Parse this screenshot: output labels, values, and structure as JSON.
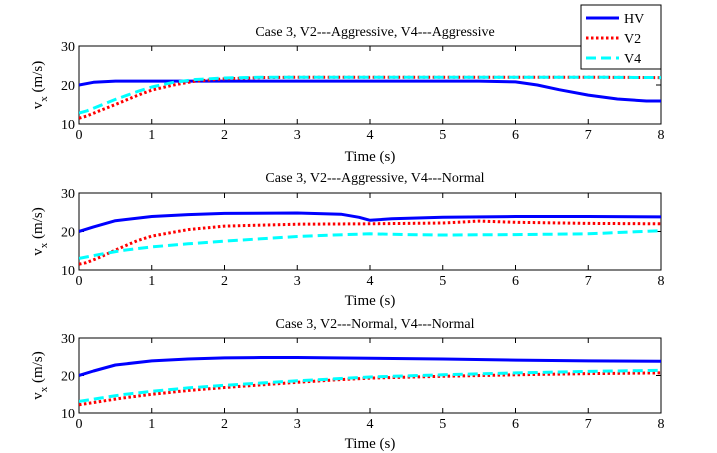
{
  "chart_data": [
    {
      "type": "line",
      "title": "Case 3, V2---Aggressive, V4---Aggressive",
      "xlabel": "Time (s)",
      "ylabel": "v",
      "ylabel_sub": "x",
      "ylabel_unit": " (m/s)",
      "xlim": [
        0,
        8
      ],
      "ylim": [
        10,
        30
      ],
      "xticks": [
        0,
        1,
        2,
        3,
        4,
        5,
        6,
        7,
        8
      ],
      "yticks": [
        10,
        20,
        30
      ],
      "grid": false,
      "legend": "top-right",
      "series": [
        {
          "name": "HV",
          "color": "#0000ff",
          "style": "solid",
          "x": [
            0,
            0.2,
            0.5,
            1,
            2,
            3,
            4,
            5,
            5.5,
            6,
            6.3,
            6.6,
            7,
            7.4,
            7.8,
            8
          ],
          "y": [
            20,
            20.7,
            21,
            21,
            21,
            21,
            21,
            21,
            21,
            20.8,
            20,
            18.8,
            17.4,
            16.4,
            15.9,
            15.9
          ]
        },
        {
          "name": "V2",
          "color": "#ff0000",
          "style": "dotted",
          "x": [
            0,
            0.1,
            0.3,
            0.5,
            0.8,
            1,
            1.3,
            1.6,
            2,
            2.5,
            3,
            4,
            5,
            6,
            7,
            8
          ],
          "y": [
            11.5,
            12,
            13.5,
            15,
            17.3,
            18.7,
            20,
            21,
            21.6,
            21.9,
            22,
            22,
            22,
            22,
            22,
            21.9
          ]
        },
        {
          "name": "V4",
          "color": "#00ffff",
          "style": "dashed",
          "x": [
            0,
            0.1,
            0.3,
            0.5,
            0.8,
            1,
            1.3,
            1.6,
            2,
            2.5,
            3,
            4,
            5,
            6,
            7,
            8
          ],
          "y": [
            12.8,
            13.3,
            14.8,
            16.3,
            18.3,
            19.5,
            20.7,
            21.4,
            21.8,
            22,
            22,
            22,
            22,
            22,
            22,
            21.9
          ]
        }
      ]
    },
    {
      "type": "line",
      "title": "Case 3, V2---Aggressive, V4---Normal",
      "xlabel": "Time (s)",
      "ylabel": "v",
      "ylabel_sub": "x",
      "ylabel_unit": " (m/s)",
      "xlim": [
        0,
        8
      ],
      "ylim": [
        10,
        30
      ],
      "xticks": [
        0,
        1,
        2,
        3,
        4,
        5,
        6,
        7,
        8
      ],
      "yticks": [
        10,
        20,
        30
      ],
      "grid": false,
      "series": [
        {
          "name": "HV",
          "color": "#0000ff",
          "style": "solid",
          "x": [
            0,
            0.2,
            0.5,
            1,
            1.5,
            2,
            3,
            3.6,
            3.85,
            4,
            4.3,
            5,
            6,
            7,
            8
          ],
          "y": [
            20,
            21.2,
            22.8,
            23.9,
            24.4,
            24.7,
            24.8,
            24.5,
            23.7,
            22.9,
            23.3,
            23.7,
            23.9,
            23.9,
            23.8
          ]
        },
        {
          "name": "V2",
          "color": "#ff0000",
          "style": "dotted",
          "x": [
            0,
            0.1,
            0.3,
            0.5,
            0.8,
            1,
            1.5,
            2,
            3,
            4,
            5,
            5.5,
            6,
            7,
            8
          ],
          "y": [
            11.5,
            11.9,
            13.4,
            15.2,
            17.6,
            18.8,
            20.5,
            21.4,
            21.9,
            22,
            22.2,
            22.7,
            22.4,
            22.1,
            22
          ]
        },
        {
          "name": "V4",
          "color": "#00ffff",
          "style": "dashed",
          "x": [
            0,
            0.3,
            0.6,
            1,
            1.5,
            2,
            2.5,
            3,
            3.5,
            4,
            4.5,
            5,
            6,
            7,
            8
          ],
          "y": [
            13,
            14.1,
            15.1,
            16,
            16.8,
            17.5,
            18.1,
            18.7,
            19.1,
            19.4,
            19.2,
            19.1,
            19.2,
            19.4,
            20.2
          ]
        }
      ]
    },
    {
      "type": "line",
      "title": "Case 3, V2---Normal, V4---Normal",
      "xlabel": "Time (s)",
      "ylabel": "v",
      "ylabel_sub": "x",
      "ylabel_unit": " (m/s)",
      "xlim": [
        0,
        8
      ],
      "ylim": [
        10,
        30
      ],
      "xticks": [
        0,
        1,
        2,
        3,
        4,
        5,
        6,
        7,
        8
      ],
      "yticks": [
        10,
        20,
        30
      ],
      "grid": false,
      "series": [
        {
          "name": "HV",
          "color": "#0000ff",
          "style": "solid",
          "x": [
            0,
            0.2,
            0.5,
            1,
            1.5,
            2,
            2.5,
            3,
            4,
            5,
            6,
            7,
            8
          ],
          "y": [
            20,
            21.2,
            22.8,
            23.9,
            24.4,
            24.7,
            24.8,
            24.8,
            24.6,
            24.4,
            24.1,
            23.9,
            23.8
          ]
        },
        {
          "name": "V2",
          "color": "#ff0000",
          "style": "dotted",
          "x": [
            0,
            0.3,
            0.6,
            1,
            1.5,
            2,
            2.5,
            3,
            3.5,
            4,
            5,
            6,
            7,
            8
          ],
          "y": [
            12.2,
            13.1,
            14,
            15,
            16,
            16.8,
            17.5,
            18.2,
            18.8,
            19.3,
            19.8,
            20.2,
            20.5,
            20.7
          ]
        },
        {
          "name": "V4",
          "color": "#00ffff",
          "style": "dashed",
          "x": [
            0,
            0.3,
            0.6,
            1,
            1.5,
            2,
            2.5,
            3,
            3.5,
            4,
            5,
            6,
            7,
            8
          ],
          "y": [
            13.1,
            14,
            14.9,
            15.8,
            16.7,
            17.4,
            18,
            18.6,
            19.1,
            19.6,
            20.2,
            20.7,
            21.1,
            21.4
          ]
        }
      ]
    }
  ]
}
